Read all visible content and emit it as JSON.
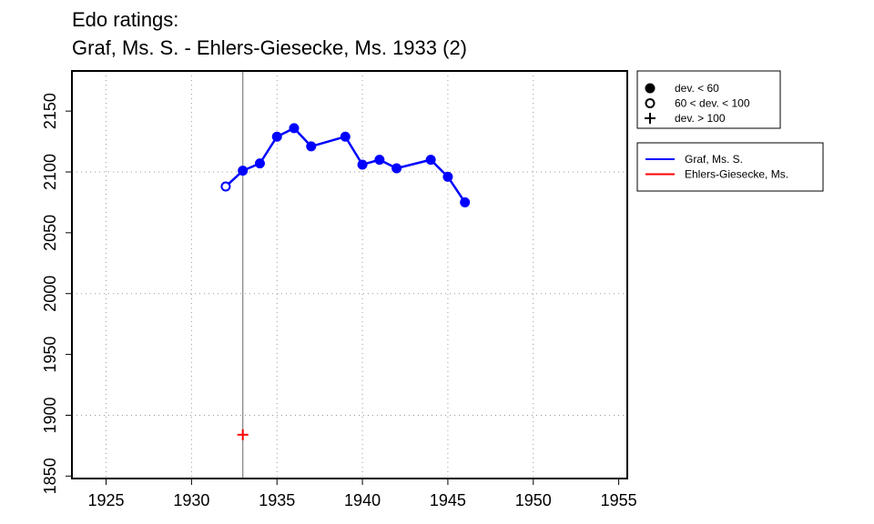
{
  "chart_data": {
    "type": "line",
    "title": "Edo ratings:",
    "subtitle": "Graf, Ms. S. - Ehlers-Giesecke, Ms. 1933 (2)",
    "xlabel": "",
    "ylabel": "",
    "xlim": [
      1923,
      1955.5
    ],
    "ylim": [
      1848,
      2183
    ],
    "x_ticks": [
      1925,
      1930,
      1935,
      1940,
      1945,
      1950,
      1955
    ],
    "y_ticks": [
      1850,
      1900,
      1950,
      2000,
      2050,
      2100,
      2150
    ],
    "grid": "dotted",
    "grid_x": [
      1925,
      1930,
      1935,
      1940,
      1945,
      1950
    ],
    "grid_y": [
      1900,
      2000,
      2100
    ],
    "vertical_marker_x": 1933,
    "series": [
      {
        "name": "Graf, Ms. S.",
        "color": "#0000ff",
        "points": [
          {
            "x": 1932,
            "y": 2088,
            "marker": "open-circle"
          },
          {
            "x": 1933,
            "y": 2101,
            "marker": "filled-circle"
          },
          {
            "x": 1934,
            "y": 2107,
            "marker": "filled-circle"
          },
          {
            "x": 1935,
            "y": 2129,
            "marker": "filled-circle"
          },
          {
            "x": 1936,
            "y": 2136,
            "marker": "filled-circle"
          },
          {
            "x": 1937,
            "y": 2121,
            "marker": "filled-circle"
          },
          {
            "x": 1939,
            "y": 2129,
            "marker": "filled-circle"
          },
          {
            "x": 1940,
            "y": 2106,
            "marker": "filled-circle"
          },
          {
            "x": 1941,
            "y": 2110,
            "marker": "filled-circle"
          },
          {
            "x": 1942,
            "y": 2103,
            "marker": "filled-circle"
          },
          {
            "x": 1944,
            "y": 2110,
            "marker": "filled-circle"
          },
          {
            "x": 1945,
            "y": 2096,
            "marker": "filled-circle"
          },
          {
            "x": 1946,
            "y": 2075,
            "marker": "filled-circle"
          }
        ]
      },
      {
        "name": "Ehlers-Giesecke, Ms.",
        "color": "#ff0000",
        "points": [
          {
            "x": 1933,
            "y": 1884,
            "marker": "plus"
          }
        ]
      }
    ],
    "legend_markers": {
      "placement": "top-right, outside plot",
      "items": [
        {
          "label": "dev. < 60",
          "marker": "filled-circle"
        },
        {
          "label": "60 < dev. < 100",
          "marker": "open-circle"
        },
        {
          "label": "dev. > 100",
          "marker": "plus"
        }
      ]
    },
    "legend_series": {
      "placement": "right, outside plot",
      "items": [
        {
          "label": "Graf, Ms. S.",
          "color": "#0000ff"
        },
        {
          "label": "Ehlers-Giesecke, Ms.",
          "color": "#ff0000"
        }
      ]
    }
  }
}
